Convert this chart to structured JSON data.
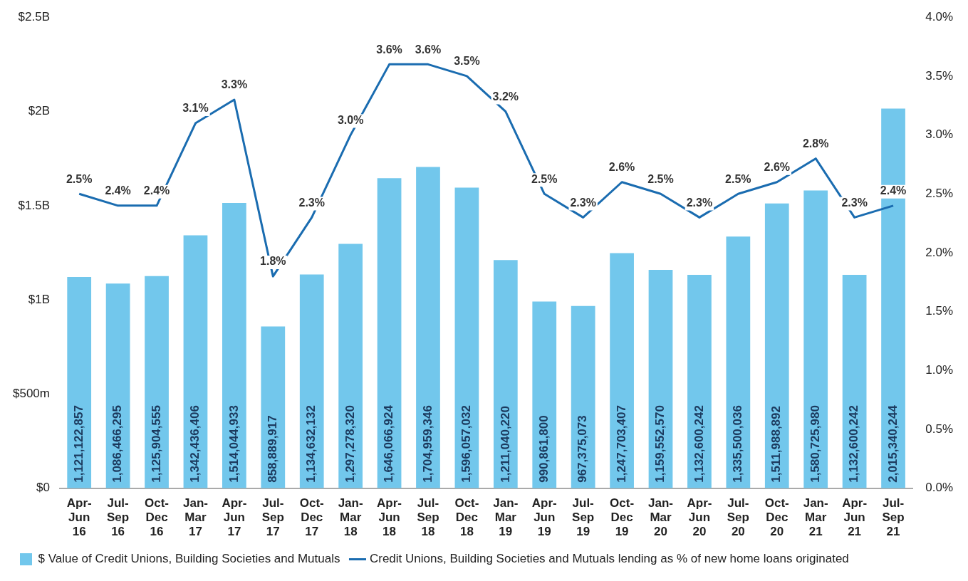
{
  "chart_data": {
    "type": "bar",
    "categories": [
      "Apr-Jun 16",
      "Jul-Sep 16",
      "Oct-Dec 16",
      "Jan-Mar 17",
      "Apr-Jun 17",
      "Jul-Sep 17",
      "Oct-Dec 17",
      "Jan-Mar 18",
      "Apr-Jun 18",
      "Jul-Sep 18",
      "Oct-Dec 18",
      "Jan-Mar 19",
      "Apr-Jun 19",
      "Jul-Sep 19",
      "Oct-Dec 19",
      "Jan-Mar 20",
      "Apr-Jun 20",
      "Jul-Sep 20",
      "Oct-Dec 20",
      "Jan-Mar 21",
      "Apr-Jun 21",
      "Jul-Sep 21"
    ],
    "series": [
      {
        "name": "$ Value of Credit Unions, Building Societies and Mutuals",
        "color": "#72c7ec",
        "values": [
          1121122857,
          1086466295,
          1125904555,
          1342436406,
          1514044933,
          858889917,
          1134632132,
          1297278320,
          1646066924,
          1704959346,
          1596057032,
          1211040220,
          990861800,
          967375073,
          1247703407,
          1159552570,
          1132600242,
          1335500036,
          1511988892,
          1580725980,
          1132600242,
          2015340244
        ],
        "value_labels": [
          "1,121,122,857",
          "1,086,466,295",
          "1,125,904,555",
          "1,342,436,406",
          "1,514,044,933",
          "858,889,917",
          "1,134,632,132",
          "1,297,278,320",
          "1,646,066,924",
          "1,704,959,346",
          "1,596,057,032",
          "1,211,040,220",
          "990,861,800",
          "967,375,073",
          "1,247,703,407",
          "1,159,552,570",
          "1,132,600,242",
          "1,335,500,036",
          "1,511,988,892",
          "1,580,725,980",
          "1,132,600,242",
          "2,015,340,244"
        ]
      },
      {
        "name": "Credit Unions, Building Societies and Mutuals lending as % of new home loans originated",
        "type": "line",
        "axis": "y2",
        "color": "#1a6cb0",
        "values": [
          2.5,
          2.4,
          2.4,
          3.1,
          3.3,
          1.8,
          2.3,
          3.0,
          3.6,
          3.6,
          3.5,
          3.2,
          2.5,
          2.3,
          2.6,
          2.5,
          2.3,
          2.5,
          2.6,
          2.8,
          2.3,
          2.4
        ],
        "value_labels": [
          "2.5%",
          "2.4%",
          "2.4%",
          "3.1%",
          "3.3%",
          "1.8%",
          "2.3%",
          "3.0%",
          "3.6%",
          "3.6%",
          "3.5%",
          "3.2%",
          "2.5%",
          "2.3%",
          "2.6%",
          "2.5%",
          "2.3%",
          "2.5%",
          "2.6%",
          "2.8%",
          "2.3%",
          "2.4%"
        ]
      }
    ],
    "ylim": [
      0,
      2500000000
    ],
    "yticks": [
      {
        "value": 0,
        "label": "$0"
      },
      {
        "value": 500000000,
        "label": "$500m"
      },
      {
        "value": 1000000000,
        "label": "$1B"
      },
      {
        "value": 1500000000,
        "label": "$1.5B"
      },
      {
        "value": 2000000000,
        "label": "$2B"
      },
      {
        "value": 2500000000,
        "label": "$2.5B"
      }
    ],
    "y2lim": [
      0,
      4
    ],
    "y2ticks": [
      {
        "value": 0,
        "label": "0.0%"
      },
      {
        "value": 0.5,
        "label": "0.5%"
      },
      {
        "value": 1,
        "label": "1.0%"
      },
      {
        "value": 1.5,
        "label": "1.5%"
      },
      {
        "value": 2,
        "label": "2.0%"
      },
      {
        "value": 2.5,
        "label": "2.5%"
      },
      {
        "value": 3,
        "label": "3.0%"
      },
      {
        "value": 3.5,
        "label": "3.5%"
      },
      {
        "value": 4,
        "label": "4.0%"
      }
    ],
    "grid": false,
    "legend": "bottom left",
    "marker": "none",
    "line_style": "solid"
  }
}
